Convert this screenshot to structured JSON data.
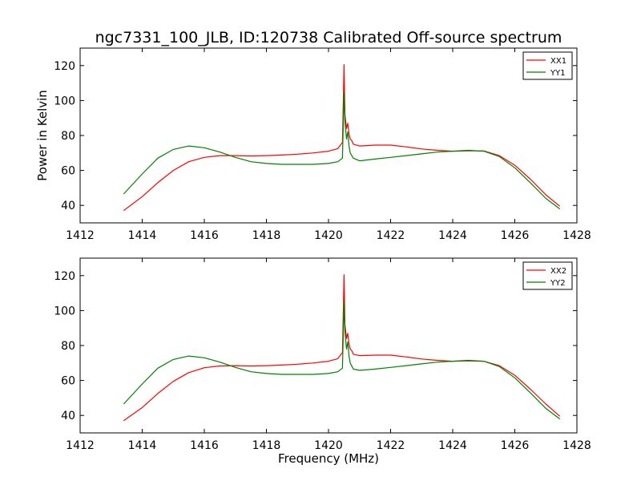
{
  "title": "ngc7331_100_JLB, ID:120738 Calibrated Off-source spectrum",
  "chart_data": [
    {
      "type": "line",
      "xlabel": "",
      "ylabel": "Power in Kelvin",
      "xlim": [
        1412,
        1428
      ],
      "ylim": [
        30,
        130
      ],
      "xticks": [
        1412,
        1414,
        1416,
        1418,
        1420,
        1422,
        1424,
        1426,
        1428
      ],
      "yticks": [
        40,
        60,
        80,
        100,
        120
      ],
      "xtick_labels": [
        "1412",
        "1414",
        "1416",
        "1418",
        "1420",
        "1422",
        "1424",
        "1426",
        "1428"
      ],
      "ytick_labels": [
        "40",
        "60",
        "80",
        "100",
        "120"
      ],
      "grid": false,
      "legend_position": "top-right",
      "series": [
        {
          "name": "XX1",
          "color": "#ff0000",
          "x": [
            1413.4,
            1414.0,
            1414.5,
            1415.0,
            1415.5,
            1416.0,
            1416.5,
            1417.0,
            1417.5,
            1418.0,
            1418.5,
            1419.0,
            1419.5,
            1420.0,
            1420.3,
            1420.45,
            1420.5,
            1420.53,
            1420.58,
            1420.62,
            1420.66,
            1420.7,
            1420.75,
            1420.8,
            1421.0,
            1421.5,
            1422.0,
            1422.5,
            1423.0,
            1423.5,
            1424.0,
            1424.5,
            1425.0,
            1425.5,
            1426.0,
            1426.5,
            1427.0,
            1427.45
          ],
          "y": [
            37,
            45,
            53,
            60,
            65,
            67.5,
            68.5,
            68.5,
            68.3,
            68.5,
            68.8,
            69.3,
            70,
            71,
            72.5,
            76,
            120.5,
            92,
            84,
            87,
            81,
            78,
            77,
            75,
            74,
            74.5,
            74.5,
            73.5,
            72.3,
            71.5,
            71,
            71.2,
            71.2,
            68.5,
            63,
            55,
            46,
            39.5
          ]
        },
        {
          "name": "YY1",
          "color": "#008000",
          "x": [
            1413.4,
            1414.0,
            1414.5,
            1415.0,
            1415.5,
            1416.0,
            1416.5,
            1417.0,
            1417.5,
            1418.0,
            1418.5,
            1419.0,
            1419.5,
            1420.0,
            1420.3,
            1420.45,
            1420.5,
            1420.53,
            1420.58,
            1420.62,
            1420.66,
            1420.7,
            1420.8,
            1421.0,
            1421.5,
            1422.0,
            1422.5,
            1423.0,
            1423.5,
            1424.0,
            1424.5,
            1425.0,
            1425.5,
            1426.0,
            1426.5,
            1427.0,
            1427.45
          ],
          "y": [
            46.5,
            58,
            67,
            72,
            74,
            73,
            70.5,
            67.5,
            65,
            64,
            63.5,
            63.5,
            63.5,
            64,
            65,
            67,
            105,
            88,
            78,
            82,
            74,
            70,
            67,
            65.5,
            66.5,
            67.5,
            68.5,
            69.5,
            70.5,
            71,
            71.5,
            71,
            68,
            61.5,
            53,
            44,
            38
          ]
        }
      ]
    },
    {
      "type": "line",
      "xlabel": "Frequency (MHz)",
      "ylabel": "",
      "xlim": [
        1412,
        1428
      ],
      "ylim": [
        30,
        130
      ],
      "xticks": [
        1412,
        1414,
        1416,
        1418,
        1420,
        1422,
        1424,
        1426,
        1428
      ],
      "yticks": [
        40,
        60,
        80,
        100,
        120
      ],
      "xtick_labels": [
        "1412",
        "1414",
        "1416",
        "1418",
        "1420",
        "1422",
        "1424",
        "1426",
        "1428"
      ],
      "ytick_labels": [
        "40",
        "60",
        "80",
        "100",
        "120"
      ],
      "grid": false,
      "legend_position": "top-right",
      "series": [
        {
          "name": "XX2",
          "color": "#ff0000",
          "x": [
            1413.4,
            1414.0,
            1414.5,
            1415.0,
            1415.5,
            1416.0,
            1416.5,
            1417.0,
            1417.5,
            1418.0,
            1418.5,
            1419.0,
            1419.5,
            1420.0,
            1420.3,
            1420.45,
            1420.5,
            1420.53,
            1420.58,
            1420.62,
            1420.66,
            1420.7,
            1420.75,
            1420.8,
            1421.0,
            1421.5,
            1422.0,
            1422.5,
            1423.0,
            1423.5,
            1424.0,
            1424.5,
            1425.0,
            1425.5,
            1426.0,
            1426.5,
            1427.0,
            1427.45
          ],
          "y": [
            37,
            44.5,
            52.5,
            59.5,
            64.5,
            67.3,
            68.3,
            68.5,
            68.3,
            68.5,
            68.8,
            69.3,
            70,
            71,
            72.5,
            76,
            120.5,
            92,
            84,
            87,
            81,
            78,
            77,
            75,
            74.2,
            74.5,
            74.5,
            73.5,
            72.3,
            71.5,
            71,
            71.2,
            71,
            68.5,
            63,
            55,
            46.5,
            39.5
          ]
        },
        {
          "name": "YY2",
          "color": "#008000",
          "x": [
            1413.4,
            1414.0,
            1414.5,
            1415.0,
            1415.5,
            1416.0,
            1416.5,
            1417.0,
            1417.5,
            1418.0,
            1418.5,
            1419.0,
            1419.5,
            1420.0,
            1420.3,
            1420.45,
            1420.5,
            1420.53,
            1420.58,
            1420.62,
            1420.66,
            1420.7,
            1420.8,
            1421.0,
            1421.5,
            1422.0,
            1422.5,
            1423.0,
            1423.5,
            1424.0,
            1424.5,
            1425.0,
            1425.5,
            1426.0,
            1426.5,
            1427.0,
            1427.45
          ],
          "y": [
            46.5,
            58,
            67,
            72,
            74,
            73,
            70.5,
            67.5,
            65,
            64,
            63.5,
            63.5,
            63.5,
            64,
            65,
            67,
            105,
            88,
            78,
            82,
            74,
            70,
            66.5,
            65.8,
            66.5,
            67.5,
            68.5,
            69.5,
            70.5,
            71,
            71.5,
            71,
            68,
            61.5,
            53,
            44,
            38
          ]
        }
      ]
    }
  ]
}
